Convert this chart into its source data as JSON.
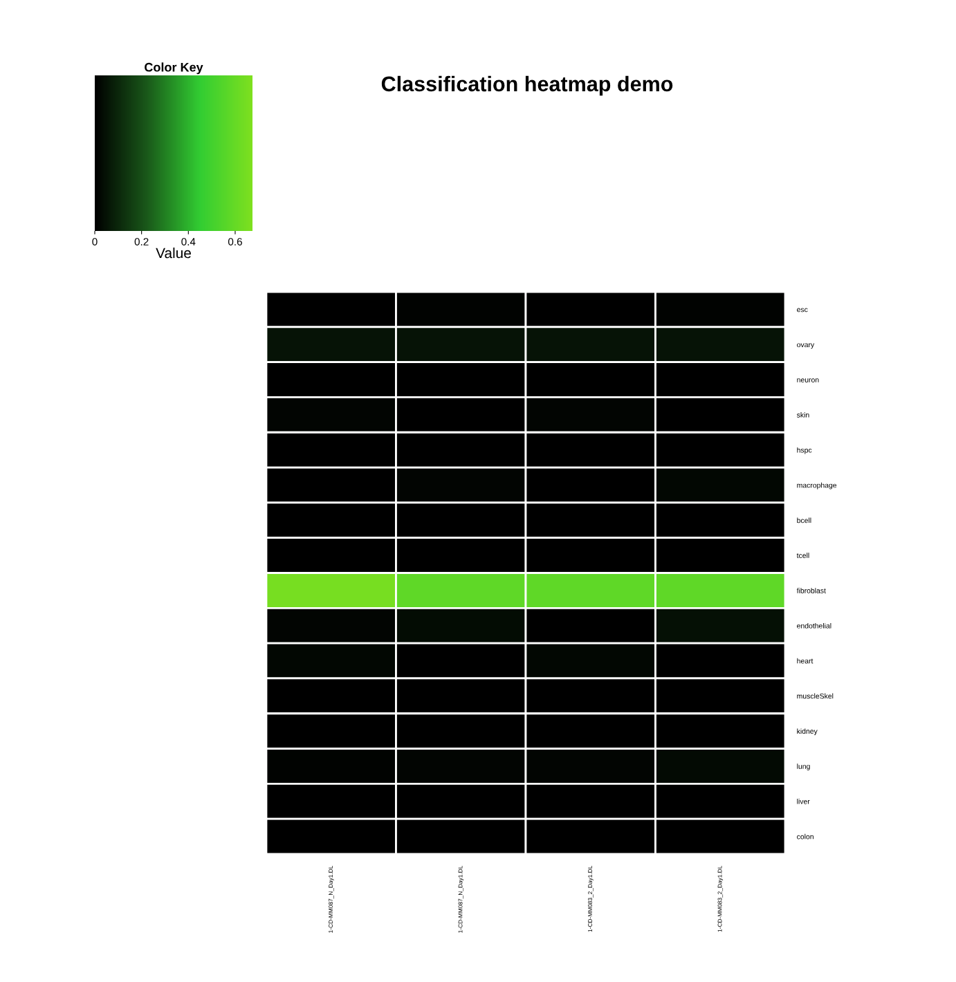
{
  "chart_data": {
    "type": "heatmap",
    "title": "Classification heatmap demo",
    "clabel": "Value",
    "legend_title": "Color Key",
    "categories": [
      "1-CD-MM087_N_Day1.DL",
      "1-CD-MM087_N_Day1.DL",
      "1-CD-MM083_2_Day1.DL",
      "1-CD-MM083_2_Day1.DL"
    ],
    "y_categories": [
      "esc",
      "ovary",
      "neuron",
      "skin",
      "hspc",
      "macrophage",
      "bcell",
      "tcell",
      "fibroblast",
      "endothelial",
      "heart",
      "muscleSkel",
      "kidney",
      "lung",
      "liver",
      "colon"
    ],
    "cells": [
      [
        0.0,
        0.01,
        0.0,
        0.01
      ],
      [
        0.05,
        0.05,
        0.05,
        0.05
      ],
      [
        0.0,
        0.0,
        0.0,
        0.0
      ],
      [
        0.015,
        0.0,
        0.015,
        0.0
      ],
      [
        0.0,
        0.0,
        0.0,
        0.0
      ],
      [
        0.0,
        0.015,
        0.0,
        0.02
      ],
      [
        0.0,
        0.0,
        0.0,
        0.0
      ],
      [
        0.0,
        0.0,
        0.0,
        0.0
      ],
      [
        0.65,
        0.58,
        0.58,
        0.58
      ],
      [
        0.015,
        0.03,
        0.0,
        0.04
      ],
      [
        0.02,
        0.0,
        0.02,
        0.0
      ],
      [
        0.0,
        0.0,
        0.0,
        0.0
      ],
      [
        0.0,
        0.0,
        0.0,
        0.0
      ],
      [
        0.01,
        0.015,
        0.015,
        0.025
      ],
      [
        0.0,
        0.0,
        0.0,
        0.0
      ],
      [
        0.0,
        0.0,
        0.0,
        0.0
      ]
    ],
    "colors": [
      "#000000",
      "#1a5a1a",
      "#32cd32",
      "#7fe01f"
    ],
    "clim": [
      0,
      0.674
    ],
    "cticks": [
      0,
      0.2,
      0.4,
      0.6
    ]
  }
}
